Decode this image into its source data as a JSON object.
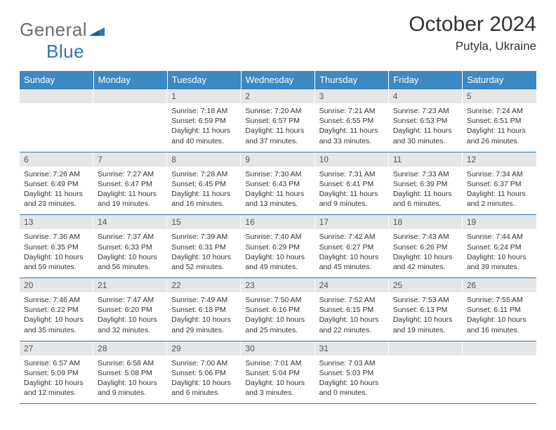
{
  "logo": {
    "part1": "General",
    "part2": "Blue"
  },
  "title": "October 2024",
  "location": "Putyla, Ukraine",
  "colors": {
    "header_bg": "#3d89c3",
    "border": "#2d74b5",
    "daynum_bg": "#e6e6e6",
    "text": "#333333",
    "logo_gray": "#6b6b6b",
    "logo_blue": "#2d74b5"
  },
  "dayNames": [
    "Sunday",
    "Monday",
    "Tuesday",
    "Wednesday",
    "Thursday",
    "Friday",
    "Saturday"
  ],
  "weeks": [
    [
      {
        "num": "",
        "lines": []
      },
      {
        "num": "",
        "lines": []
      },
      {
        "num": "1",
        "lines": [
          "Sunrise: 7:18 AM",
          "Sunset: 6:59 PM",
          "Daylight: 11 hours and 40 minutes."
        ]
      },
      {
        "num": "2",
        "lines": [
          "Sunrise: 7:20 AM",
          "Sunset: 6:57 PM",
          "Daylight: 11 hours and 37 minutes."
        ]
      },
      {
        "num": "3",
        "lines": [
          "Sunrise: 7:21 AM",
          "Sunset: 6:55 PM",
          "Daylight: 11 hours and 33 minutes."
        ]
      },
      {
        "num": "4",
        "lines": [
          "Sunrise: 7:23 AM",
          "Sunset: 6:53 PM",
          "Daylight: 11 hours and 30 minutes."
        ]
      },
      {
        "num": "5",
        "lines": [
          "Sunrise: 7:24 AM",
          "Sunset: 6:51 PM",
          "Daylight: 11 hours and 26 minutes."
        ]
      }
    ],
    [
      {
        "num": "6",
        "lines": [
          "Sunrise: 7:26 AM",
          "Sunset: 6:49 PM",
          "Daylight: 11 hours and 23 minutes."
        ]
      },
      {
        "num": "7",
        "lines": [
          "Sunrise: 7:27 AM",
          "Sunset: 6:47 PM",
          "Daylight: 11 hours and 19 minutes."
        ]
      },
      {
        "num": "8",
        "lines": [
          "Sunrise: 7:28 AM",
          "Sunset: 6:45 PM",
          "Daylight: 11 hours and 16 minutes."
        ]
      },
      {
        "num": "9",
        "lines": [
          "Sunrise: 7:30 AM",
          "Sunset: 6:43 PM",
          "Daylight: 11 hours and 13 minutes."
        ]
      },
      {
        "num": "10",
        "lines": [
          "Sunrise: 7:31 AM",
          "Sunset: 6:41 PM",
          "Daylight: 11 hours and 9 minutes."
        ]
      },
      {
        "num": "11",
        "lines": [
          "Sunrise: 7:33 AM",
          "Sunset: 6:39 PM",
          "Daylight: 11 hours and 6 minutes."
        ]
      },
      {
        "num": "12",
        "lines": [
          "Sunrise: 7:34 AM",
          "Sunset: 6:37 PM",
          "Daylight: 11 hours and 2 minutes."
        ]
      }
    ],
    [
      {
        "num": "13",
        "lines": [
          "Sunrise: 7:36 AM",
          "Sunset: 6:35 PM",
          "Daylight: 10 hours and 59 minutes."
        ]
      },
      {
        "num": "14",
        "lines": [
          "Sunrise: 7:37 AM",
          "Sunset: 6:33 PM",
          "Daylight: 10 hours and 56 minutes."
        ]
      },
      {
        "num": "15",
        "lines": [
          "Sunrise: 7:39 AM",
          "Sunset: 6:31 PM",
          "Daylight: 10 hours and 52 minutes."
        ]
      },
      {
        "num": "16",
        "lines": [
          "Sunrise: 7:40 AM",
          "Sunset: 6:29 PM",
          "Daylight: 10 hours and 49 minutes."
        ]
      },
      {
        "num": "17",
        "lines": [
          "Sunrise: 7:42 AM",
          "Sunset: 6:27 PM",
          "Daylight: 10 hours and 45 minutes."
        ]
      },
      {
        "num": "18",
        "lines": [
          "Sunrise: 7:43 AM",
          "Sunset: 6:26 PM",
          "Daylight: 10 hours and 42 minutes."
        ]
      },
      {
        "num": "19",
        "lines": [
          "Sunrise: 7:44 AM",
          "Sunset: 6:24 PM",
          "Daylight: 10 hours and 39 minutes."
        ]
      }
    ],
    [
      {
        "num": "20",
        "lines": [
          "Sunrise: 7:46 AM",
          "Sunset: 6:22 PM",
          "Daylight: 10 hours and 35 minutes."
        ]
      },
      {
        "num": "21",
        "lines": [
          "Sunrise: 7:47 AM",
          "Sunset: 6:20 PM",
          "Daylight: 10 hours and 32 minutes."
        ]
      },
      {
        "num": "22",
        "lines": [
          "Sunrise: 7:49 AM",
          "Sunset: 6:18 PM",
          "Daylight: 10 hours and 29 minutes."
        ]
      },
      {
        "num": "23",
        "lines": [
          "Sunrise: 7:50 AM",
          "Sunset: 6:16 PM",
          "Daylight: 10 hours and 25 minutes."
        ]
      },
      {
        "num": "24",
        "lines": [
          "Sunrise: 7:52 AM",
          "Sunset: 6:15 PM",
          "Daylight: 10 hours and 22 minutes."
        ]
      },
      {
        "num": "25",
        "lines": [
          "Sunrise: 7:53 AM",
          "Sunset: 6:13 PM",
          "Daylight: 10 hours and 19 minutes."
        ]
      },
      {
        "num": "26",
        "lines": [
          "Sunrise: 7:55 AM",
          "Sunset: 6:11 PM",
          "Daylight: 10 hours and 16 minutes."
        ]
      }
    ],
    [
      {
        "num": "27",
        "lines": [
          "Sunrise: 6:57 AM",
          "Sunset: 5:09 PM",
          "Daylight: 10 hours and 12 minutes."
        ]
      },
      {
        "num": "28",
        "lines": [
          "Sunrise: 6:58 AM",
          "Sunset: 5:08 PM",
          "Daylight: 10 hours and 9 minutes."
        ]
      },
      {
        "num": "29",
        "lines": [
          "Sunrise: 7:00 AM",
          "Sunset: 5:06 PM",
          "Daylight: 10 hours and 6 minutes."
        ]
      },
      {
        "num": "30",
        "lines": [
          "Sunrise: 7:01 AM",
          "Sunset: 5:04 PM",
          "Daylight: 10 hours and 3 minutes."
        ]
      },
      {
        "num": "31",
        "lines": [
          "Sunrise: 7:03 AM",
          "Sunset: 5:03 PM",
          "Daylight: 10 hours and 0 minutes."
        ]
      },
      {
        "num": "",
        "lines": []
      },
      {
        "num": "",
        "lines": []
      }
    ]
  ]
}
